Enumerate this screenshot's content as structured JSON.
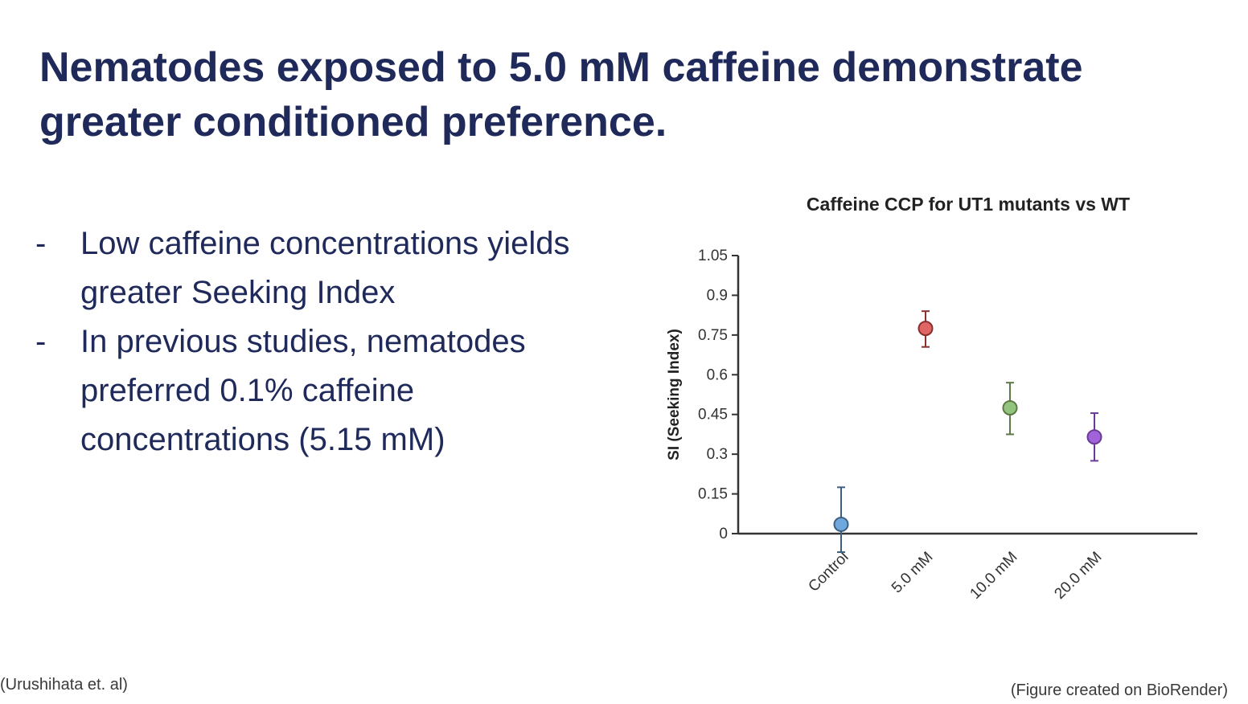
{
  "slide": {
    "title": "Nematodes exposed to 5.0 mM caffeine demonstrate greater conditioned preference.",
    "bullets": [
      {
        "marker": "-",
        "text": "Low caffeine concentrations yields greater Seeking Index"
      },
      {
        "marker": "-",
        "text": "In previous studies, nematodes preferred 0.1% caffeine concentrations (5.15 mM)"
      }
    ],
    "citation_left": "(Urushihata et. al)",
    "citation_right": "(Figure created on BioRender)"
  },
  "chart_data": {
    "type": "scatter",
    "title": "Caffeine CCP for UT1 mutants vs WT",
    "xlabel": "",
    "ylabel": "SI (Seeking Index)",
    "categories": [
      "Control",
      "5.0 mM",
      "10.0 mM",
      "20.0 mM"
    ],
    "values": [
      0.035,
      0.775,
      0.475,
      0.365
    ],
    "error_upper": [
      0.175,
      0.84,
      0.57,
      0.455
    ],
    "error_lower": [
      -0.07,
      0.705,
      0.375,
      0.275
    ],
    "colors": [
      "#6fa8dc",
      "#e06666",
      "#93c47d",
      "#a064d8"
    ],
    "error_colors": [
      "#3d5f80",
      "#8b2e2e",
      "#5a7a45",
      "#6a3a9a"
    ],
    "ylim": [
      0,
      1.05
    ],
    "yticks": [
      0,
      0.15,
      0.3,
      0.45,
      0.6,
      0.75,
      0.9,
      1.05
    ],
    "ytick_labels": [
      "0",
      "0.15",
      "0.3",
      "0.45",
      "0.6",
      "0.75",
      "0.9",
      "1.05"
    ],
    "grid": false,
    "legend": "none"
  }
}
